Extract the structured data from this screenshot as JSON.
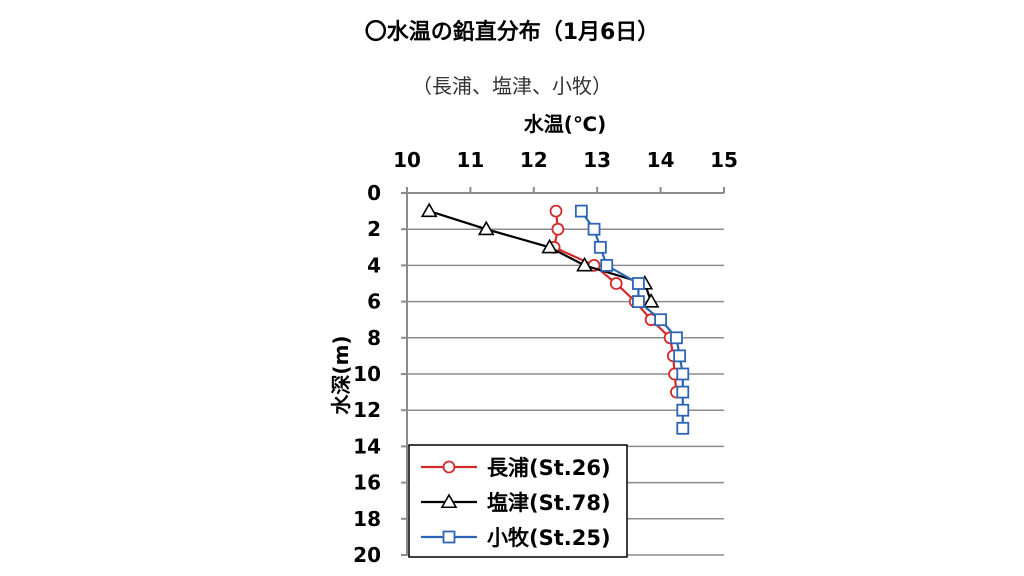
{
  "header": {
    "title": "〇水温の鉛直分布（1月6日）",
    "subtitle": "（長浦、塩津、小牧）"
  },
  "chart_data": {
    "type": "line",
    "xlabel": "水温(℃)",
    "ylabel": "水深(m)",
    "xlim": [
      10,
      15
    ],
    "ylim": [
      0,
      20
    ],
    "x_ticks": [
      10,
      11,
      12,
      13,
      14,
      15
    ],
    "y_ticks": [
      0,
      2,
      4,
      6,
      8,
      10,
      12,
      14,
      16,
      18,
      20
    ],
    "x_axis_position": "top",
    "y_axis_inverted": true,
    "grid": "horizontal",
    "legend_position": "bottom-left",
    "series": [
      {
        "name": "長浦(St.26)",
        "color": "#d42a2a",
        "marker": "circle",
        "points": [
          [
            12.35,
            1
          ],
          [
            12.38,
            2
          ],
          [
            12.32,
            3
          ],
          [
            12.95,
            4
          ],
          [
            13.3,
            5
          ],
          [
            13.6,
            6
          ],
          [
            13.85,
            7
          ],
          [
            14.15,
            8
          ],
          [
            14.2,
            9
          ],
          [
            14.22,
            10
          ],
          [
            14.25,
            11
          ]
        ]
      },
      {
        "name": "塩津(St.78)",
        "color": "#000000",
        "marker": "triangle",
        "points": [
          [
            10.35,
            1
          ],
          [
            11.25,
            2
          ],
          [
            12.25,
            3
          ],
          [
            12.8,
            4
          ],
          [
            13.75,
            5
          ],
          [
            13.85,
            6
          ]
        ]
      },
      {
        "name": "小牧(St.25)",
        "color": "#2e64b4",
        "marker": "square",
        "points": [
          [
            12.75,
            1
          ],
          [
            12.95,
            2
          ],
          [
            13.05,
            3
          ],
          [
            13.15,
            4
          ],
          [
            13.65,
            5
          ],
          [
            13.65,
            6
          ],
          [
            14.0,
            7
          ],
          [
            14.25,
            8
          ],
          [
            14.3,
            9
          ],
          [
            14.35,
            10
          ],
          [
            14.35,
            11
          ],
          [
            14.35,
            12
          ],
          [
            14.35,
            13
          ]
        ]
      }
    ]
  }
}
